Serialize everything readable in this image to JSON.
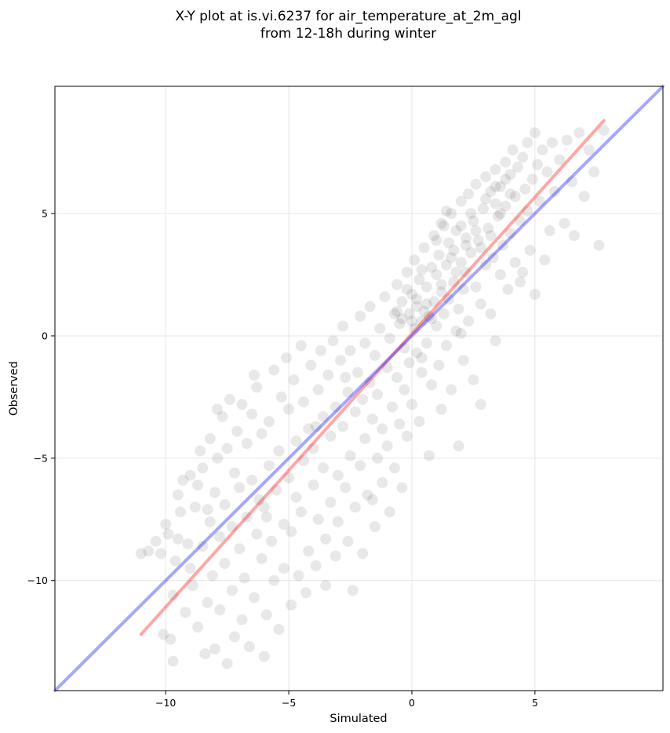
{
  "chart_data": {
    "type": "scatter",
    "title": [
      "X-Y plot at is.vi.6237 for air_temperature_at_2m_agl",
      "from 12-18h during winter"
    ],
    "xlabel": "Simulated",
    "ylabel": "Observed",
    "xlim": [
      -14.5,
      10.2
    ],
    "ylim": [
      -14.5,
      10.2
    ],
    "xticks": [
      -10,
      -5,
      0,
      5
    ],
    "yticks": [
      -10,
      -5,
      0,
      5
    ],
    "xtick_labels": [
      "−10",
      "−5",
      "0",
      "5"
    ],
    "ytick_labels": [
      "−10",
      "−5",
      "0",
      "5"
    ],
    "grid": true,
    "point_color": "#000000",
    "point_alpha": 0.09,
    "series": [
      {
        "points": [
          [
            -11.0,
            -8.9
          ],
          [
            -10.7,
            -8.8
          ],
          [
            -10.4,
            -8.4
          ],
          [
            -10.2,
            -8.9
          ],
          [
            -10.1,
            -12.2
          ],
          [
            -10.0,
            -7.7
          ],
          [
            -9.9,
            -8.1
          ],
          [
            -9.8,
            -12.4
          ],
          [
            -9.7,
            -13.3
          ],
          [
            -9.7,
            -10.6
          ],
          [
            -9.6,
            -9.2
          ],
          [
            -9.5,
            -8.3
          ],
          [
            -9.5,
            -6.5
          ],
          [
            -9.4,
            -7.2
          ],
          [
            -9.3,
            -5.9
          ],
          [
            -9.2,
            -11.3
          ],
          [
            -9.1,
            -8.5
          ],
          [
            -9.0,
            -5.7
          ],
          [
            -9.0,
            -9.5
          ],
          [
            -8.9,
            -10.2
          ],
          [
            -8.8,
            -7.0
          ],
          [
            -8.7,
            -6.1
          ],
          [
            -8.7,
            -11.9
          ],
          [
            -8.6,
            -4.7
          ],
          [
            -8.5,
            -5.4
          ],
          [
            -8.5,
            -8.6
          ],
          [
            -8.4,
            -13.0
          ],
          [
            -8.3,
            -10.9
          ],
          [
            -8.2,
            -4.2
          ],
          [
            -8.2,
            -7.6
          ],
          [
            -8.1,
            -9.8
          ],
          [
            -8.0,
            -6.4
          ],
          [
            -8.0,
            -12.8
          ],
          [
            -7.9,
            -5.0
          ],
          [
            -7.8,
            -8.2
          ],
          [
            -7.8,
            -11.2
          ],
          [
            -7.7,
            -3.3
          ],
          [
            -7.6,
            -6.9
          ],
          [
            -7.6,
            -9.3
          ],
          [
            -7.5,
            -4.6
          ],
          [
            -7.5,
            -13.4
          ],
          [
            -7.4,
            -2.6
          ],
          [
            -7.3,
            -7.8
          ],
          [
            -7.3,
            -10.4
          ],
          [
            -7.2,
            -5.6
          ],
          [
            -7.2,
            -12.3
          ],
          [
            -7.1,
            -3.9
          ],
          [
            -7.0,
            -8.7
          ],
          [
            -7.0,
            -6.2
          ],
          [
            -6.9,
            -2.8
          ],
          [
            -6.9,
            -11.6
          ],
          [
            -6.8,
            -9.9
          ],
          [
            -6.7,
            -4.4
          ],
          [
            -6.7,
            -7.4
          ],
          [
            -6.6,
            -12.7
          ],
          [
            -6.5,
            -3.2
          ],
          [
            -6.5,
            -5.9
          ],
          [
            -6.4,
            -10.7
          ],
          [
            -6.3,
            -8.1
          ],
          [
            -6.3,
            -2.1
          ],
          [
            -6.2,
            -6.7
          ],
          [
            -6.1,
            -9.1
          ],
          [
            -6.1,
            -4.0
          ],
          [
            -6.0,
            -13.1
          ],
          [
            -6.0,
            -7.0
          ],
          [
            -5.9,
            -11.4
          ],
          [
            -5.8,
            -3.5
          ],
          [
            -5.8,
            -5.3
          ],
          [
            -5.7,
            -8.4
          ],
          [
            -5.6,
            -1.4
          ],
          [
            -5.6,
            -10.0
          ],
          [
            -5.5,
            -6.3
          ],
          [
            -5.4,
            -4.7
          ],
          [
            -5.4,
            -12.0
          ],
          [
            -5.3,
            -2.5
          ],
          [
            -5.2,
            -7.7
          ],
          [
            -5.2,
            -9.5
          ],
          [
            -5.1,
            -0.9
          ],
          [
            -5.0,
            -5.8
          ],
          [
            -5.0,
            -3.0
          ],
          [
            -4.9,
            -11.0
          ],
          [
            -4.9,
            -8.0
          ],
          [
            -4.8,
            -1.8
          ],
          [
            -4.7,
            -6.6
          ],
          [
            -4.7,
            -4.3
          ],
          [
            -4.6,
            -9.8
          ],
          [
            -4.5,
            -0.4
          ],
          [
            -4.5,
            -7.2
          ],
          [
            -4.4,
            -2.7
          ],
          [
            -4.4,
            -5.1
          ],
          [
            -4.3,
            -10.5
          ],
          [
            -4.2,
            -3.8
          ],
          [
            -4.2,
            -8.8
          ],
          [
            -4.1,
            -1.2
          ],
          [
            -4.0,
            -6.1
          ],
          [
            -4.0,
            -4.6
          ],
          [
            -3.9,
            -9.4
          ],
          [
            -3.8,
            -2.2
          ],
          [
            -3.8,
            -7.5
          ],
          [
            -3.7,
            -0.6
          ],
          [
            -3.6,
            -5.4
          ],
          [
            -3.6,
            -3.3
          ],
          [
            -3.5,
            -10.2
          ],
          [
            -3.5,
            -8.3
          ],
          [
            -3.4,
            -1.6
          ],
          [
            -3.3,
            -6.8
          ],
          [
            -3.3,
            -4.1
          ],
          [
            -3.2,
            -0.2
          ],
          [
            -3.1,
            -2.9
          ],
          [
            -3.1,
            -9.0
          ],
          [
            -3.0,
            -5.7
          ],
          [
            -3.0,
            -7.6
          ],
          [
            -2.9,
            -1.0
          ],
          [
            -2.8,
            -3.7
          ],
          [
            -2.8,
            0.4
          ],
          [
            -2.7,
            -6.2
          ],
          [
            -2.6,
            -2.3
          ],
          [
            -2.6,
            -8.4
          ],
          [
            -2.5,
            -4.9
          ],
          [
            -2.5,
            -0.6
          ],
          [
            -2.4,
            -10.4
          ],
          [
            -2.3,
            -3.1
          ],
          [
            -2.3,
            -7.0
          ],
          [
            -2.2,
            -1.5
          ],
          [
            -2.1,
            0.8
          ],
          [
            -2.1,
            -5.3
          ],
          [
            -2.0,
            -2.6
          ],
          [
            -2.0,
            -8.9
          ],
          [
            -1.9,
            -0.3
          ],
          [
            -1.9,
            -4.2
          ],
          [
            -1.8,
            -6.5
          ],
          [
            -1.7,
            -1.9
          ],
          [
            -1.7,
            1.2
          ],
          [
            -1.6,
            -3.4
          ],
          [
            -1.5,
            -7.8
          ],
          [
            -1.5,
            -0.8
          ],
          [
            -1.4,
            -5.0
          ],
          [
            -1.4,
            -2.4
          ],
          [
            -1.3,
            0.3
          ],
          [
            -1.2,
            -6.0
          ],
          [
            -1.2,
            -3.8
          ],
          [
            -1.1,
            1.6
          ],
          [
            -1.0,
            -1.3
          ],
          [
            -1.0,
            -4.5
          ],
          [
            -0.9,
            -7.2
          ],
          [
            -0.9,
            -0.1
          ],
          [
            -0.8,
            -2.9
          ],
          [
            -0.7,
            0.9
          ],
          [
            -0.7,
            -5.4
          ],
          [
            -0.6,
            2.1
          ],
          [
            -0.6,
            -1.7
          ],
          [
            -0.5,
            -3.6
          ],
          [
            -0.5,
            0.5
          ],
          [
            -0.4,
            -6.2
          ],
          [
            -0.4,
            1.4
          ],
          [
            -0.3,
            -2.2
          ],
          [
            -0.3,
            -0.5
          ],
          [
            -0.2,
            2.6
          ],
          [
            -0.2,
            -4.1
          ],
          [
            -0.1,
            0.9
          ],
          [
            -0.1,
            -1.1
          ],
          [
            0.0,
            1.7
          ],
          [
            0.0,
            -2.8
          ],
          [
            0.1,
            0.3
          ],
          [
            0.1,
            3.1
          ],
          [
            0.2,
            -0.7
          ],
          [
            0.2,
            1.2
          ],
          [
            0.3,
            -3.5
          ],
          [
            0.3,
            2.3
          ],
          [
            0.4,
            0.6
          ],
          [
            0.4,
            -1.5
          ],
          [
            0.5,
            3.6
          ],
          [
            0.5,
            1.0
          ],
          [
            0.6,
            -0.3
          ],
          [
            0.6,
            2.0
          ],
          [
            0.7,
            -4.9
          ],
          [
            0.7,
            0.8
          ],
          [
            0.8,
            2.8
          ],
          [
            0.8,
            -2.0
          ],
          [
            0.9,
            1.4
          ],
          [
            0.9,
            4.1
          ],
          [
            1.0,
            0.4
          ],
          [
            1.0,
            2.5
          ],
          [
            1.1,
            -1.2
          ],
          [
            1.1,
            3.3
          ],
          [
            1.2,
            1.8
          ],
          [
            1.2,
            -3.0
          ],
          [
            1.3,
            4.5
          ],
          [
            1.3,
            0.9
          ],
          [
            1.4,
            2.9
          ],
          [
            1.4,
            -0.4
          ],
          [
            1.5,
            3.8
          ],
          [
            1.5,
            1.5
          ],
          [
            1.6,
            5.0
          ],
          [
            1.6,
            -2.2
          ],
          [
            1.7,
            2.2
          ],
          [
            1.7,
            3.5
          ],
          [
            1.8,
            0.2
          ],
          [
            1.8,
            4.3
          ],
          [
            1.9,
            1.1
          ],
          [
            1.9,
            -4.5
          ],
          [
            2.0,
            3.0
          ],
          [
            2.0,
            5.5
          ],
          [
            2.1,
            1.9
          ],
          [
            2.1,
            -1.0
          ],
          [
            2.2,
            4.0
          ],
          [
            2.2,
            2.6
          ],
          [
            2.3,
            0.6
          ],
          [
            2.3,
            5.8
          ],
          [
            2.4,
            3.4
          ],
          [
            2.5,
            -1.8
          ],
          [
            2.5,
            4.7
          ],
          [
            2.6,
            2.0
          ],
          [
            2.6,
            6.2
          ],
          [
            2.7,
            3.9
          ],
          [
            2.8,
            1.3
          ],
          [
            2.8,
            -2.8
          ],
          [
            2.9,
            5.2
          ],
          [
            3.0,
            2.9
          ],
          [
            3.0,
            6.5
          ],
          [
            3.1,
            4.4
          ],
          [
            3.2,
            0.9
          ],
          [
            3.2,
            5.9
          ],
          [
            3.3,
            3.2
          ],
          [
            3.4,
            -0.2
          ],
          [
            3.4,
            6.8
          ],
          [
            3.5,
            4.9
          ],
          [
            3.6,
            2.5
          ],
          [
            3.6,
            6.1
          ],
          [
            3.7,
            3.7
          ],
          [
            3.8,
            7.1
          ],
          [
            3.8,
            5.3
          ],
          [
            3.9,
            1.9
          ],
          [
            4.0,
            6.6
          ],
          [
            4.0,
            4.2
          ],
          [
            4.1,
            7.6
          ],
          [
            4.2,
            5.7
          ],
          [
            4.2,
            3.0
          ],
          [
            4.3,
            6.9
          ],
          [
            4.4,
            4.7
          ],
          [
            4.5,
            7.3
          ],
          [
            4.5,
            2.6
          ],
          [
            4.6,
            6.0
          ],
          [
            4.7,
            7.9
          ],
          [
            4.7,
            5.1
          ],
          [
            4.8,
            3.5
          ],
          [
            4.9,
            6.4
          ],
          [
            5.0,
            8.3
          ],
          [
            5.0,
            1.7
          ],
          [
            5.1,
            7.0
          ],
          [
            5.2,
            5.5
          ],
          [
            5.3,
            7.6
          ],
          [
            5.4,
            3.1
          ],
          [
            5.5,
            6.7
          ],
          [
            5.6,
            4.3
          ],
          [
            5.7,
            7.9
          ],
          [
            5.8,
            5.9
          ],
          [
            6.0,
            7.2
          ],
          [
            6.2,
            4.6
          ],
          [
            6.3,
            8.0
          ],
          [
            6.5,
            6.3
          ],
          [
            6.6,
            4.1
          ],
          [
            6.8,
            8.3
          ],
          [
            7.0,
            5.7
          ],
          [
            7.2,
            7.6
          ],
          [
            7.4,
            6.7
          ],
          [
            7.6,
            3.7
          ],
          [
            7.8,
            8.4
          ],
          [
            -8.3,
            -7.1
          ],
          [
            -7.9,
            -3.0
          ],
          [
            -6.4,
            -1.6
          ],
          [
            -5.9,
            -7.4
          ],
          [
            -3.9,
            -3.7
          ],
          [
            -2.7,
            -1.7
          ],
          [
            -1.6,
            -6.7
          ],
          [
            0.4,
            -0.9
          ],
          [
            1.2,
            4.6
          ],
          [
            2.0,
            0.1
          ],
          [
            3.4,
            5.4
          ],
          [
            4.4,
            2.2
          ],
          [
            -0.6,
            1.0
          ],
          [
            -0.4,
            0.7
          ],
          [
            -0.2,
            1.9
          ],
          [
            0.0,
            0.6
          ],
          [
            0.2,
            1.5
          ],
          [
            0.4,
            2.7
          ],
          [
            0.6,
            1.3
          ],
          [
            0.8,
            0.7
          ],
          [
            1.0,
            3.9
          ],
          [
            1.2,
            2.1
          ],
          [
            1.4,
            5.1
          ],
          [
            1.6,
            3.2
          ],
          [
            1.8,
            2.6
          ],
          [
            2.0,
            4.5
          ],
          [
            2.2,
            3.7
          ],
          [
            2.4,
            5.0
          ],
          [
            2.6,
            4.3
          ],
          [
            2.8,
            3.6
          ],
          [
            3.0,
            5.6
          ],
          [
            3.2,
            4.1
          ],
          [
            3.4,
            6.1
          ],
          [
            3.6,
            5.0
          ],
          [
            3.8,
            6.4
          ],
          [
            4.0,
            5.8
          ]
        ]
      }
    ],
    "lines": [
      {
        "name": "",
        "color": "#ff0000",
        "alpha": 0.35,
        "x": [
          -11.0,
          7.8
        ],
        "y": [
          -12.2,
          8.8
        ]
      },
      {
        "name": "",
        "color": "#0000ff",
        "alpha": 0.35,
        "x": [
          -14.5,
          10.2
        ],
        "y": [
          -14.5,
          10.2
        ]
      }
    ]
  }
}
